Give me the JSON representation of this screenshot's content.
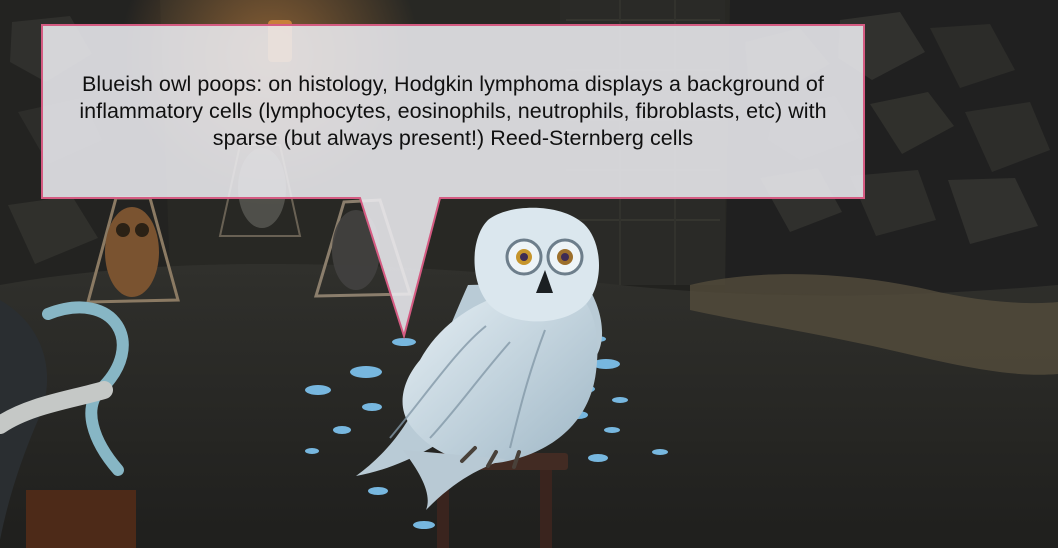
{
  "scene": {
    "callout_text": "Blueish owl poops: on histology, Hodgkin lymphoma displays a background of inflammatory cells (lymphocytes, eosinophils, neutrophils, fibroblasts, etc) with sparse (but always present!) Reed-Sternberg cells",
    "main_subject": "blue-white-snowy-owl",
    "colors": {
      "callout_fill": "#ececf0",
      "callout_border": "#d55b82",
      "owl": "#d8e6ef",
      "owl_droppings": "#77b7df",
      "background": "#252421"
    }
  }
}
